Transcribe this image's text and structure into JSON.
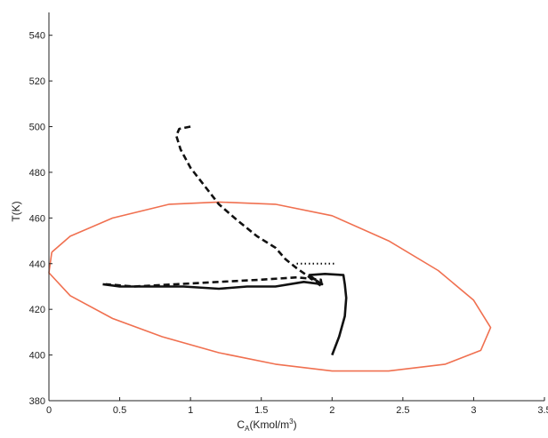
{
  "chart_data": {
    "type": "line",
    "title": "",
    "xlabel": {
      "main": "C",
      "sub": "A",
      "rest": "(Kmol/m",
      "sup": "3",
      "end": ")"
    },
    "ylabel": "T(K)",
    "xlim": [
      0,
      3.5
    ],
    "ylim": [
      380,
      550
    ],
    "xticks": [
      0,
      0.5,
      1,
      1.5,
      2,
      2.5,
      3,
      3.5
    ],
    "xtick_labels": [
      "0",
      "0.5",
      "1",
      "1.5",
      "2",
      "2.5",
      "3",
      "3.5"
    ],
    "yticks": [
      380,
      400,
      420,
      440,
      460,
      480,
      500,
      520,
      540
    ],
    "ytick_labels": [
      "380",
      "400",
      "420",
      "440",
      "460",
      "480",
      "500",
      "520",
      "540"
    ],
    "grid": false,
    "colors": {
      "ellipse": "#f07050",
      "trajectory": "#111111",
      "axis": "#222222"
    },
    "series": [
      {
        "style": "ellipse",
        "points": [
          [
            0.02,
            445
          ],
          [
            0.15,
            452
          ],
          [
            0.45,
            460
          ],
          [
            0.85,
            466
          ],
          [
            1.2,
            467
          ],
          [
            1.6,
            466
          ],
          [
            2.0,
            461
          ],
          [
            2.4,
            450
          ],
          [
            2.75,
            437
          ],
          [
            3.0,
            424
          ],
          [
            3.12,
            412
          ],
          [
            3.05,
            402
          ],
          [
            2.8,
            396
          ],
          [
            2.4,
            393
          ],
          [
            2.0,
            393
          ],
          [
            1.6,
            396
          ],
          [
            1.2,
            401
          ],
          [
            0.8,
            408
          ],
          [
            0.45,
            416
          ],
          [
            0.15,
            426
          ],
          [
            0.0,
            436
          ],
          [
            0.02,
            445
          ]
        ]
      },
      {
        "style": "dashed",
        "points": [
          [
            1.0,
            500
          ],
          [
            0.92,
            499
          ],
          [
            0.9,
            496
          ],
          [
            0.93,
            490
          ],
          [
            1.0,
            482
          ],
          [
            1.1,
            474
          ],
          [
            1.2,
            466
          ],
          [
            1.33,
            459
          ],
          [
            1.47,
            452
          ],
          [
            1.6,
            447
          ],
          [
            1.67,
            442
          ],
          [
            1.75,
            438
          ],
          [
            1.82,
            435
          ],
          [
            1.88,
            432
          ],
          [
            1.93,
            430
          ],
          [
            1.92,
            433
          ],
          [
            1.75,
            434
          ],
          [
            1.5,
            433
          ],
          [
            1.2,
            432
          ],
          [
            0.9,
            431
          ],
          [
            0.6,
            430
          ],
          [
            0.4,
            431
          ]
        ]
      },
      {
        "style": "dotted",
        "points": [
          [
            1.75,
            440
          ],
          [
            2.02,
            440
          ]
        ]
      },
      {
        "style": "solid",
        "points": [
          [
            2.0,
            400
          ],
          [
            2.05,
            408
          ],
          [
            2.09,
            417
          ],
          [
            2.1,
            425
          ],
          [
            2.09,
            431
          ],
          [
            2.08,
            435
          ],
          [
            1.95,
            435.5
          ],
          [
            1.84,
            435
          ],
          [
            1.88,
            433
          ],
          [
            1.93,
            431
          ],
          [
            1.8,
            432
          ],
          [
            1.6,
            430
          ],
          [
            1.4,
            430
          ],
          [
            1.2,
            429
          ],
          [
            0.95,
            430
          ],
          [
            0.7,
            430
          ],
          [
            0.5,
            430
          ],
          [
            0.38,
            431
          ]
        ]
      }
    ]
  }
}
